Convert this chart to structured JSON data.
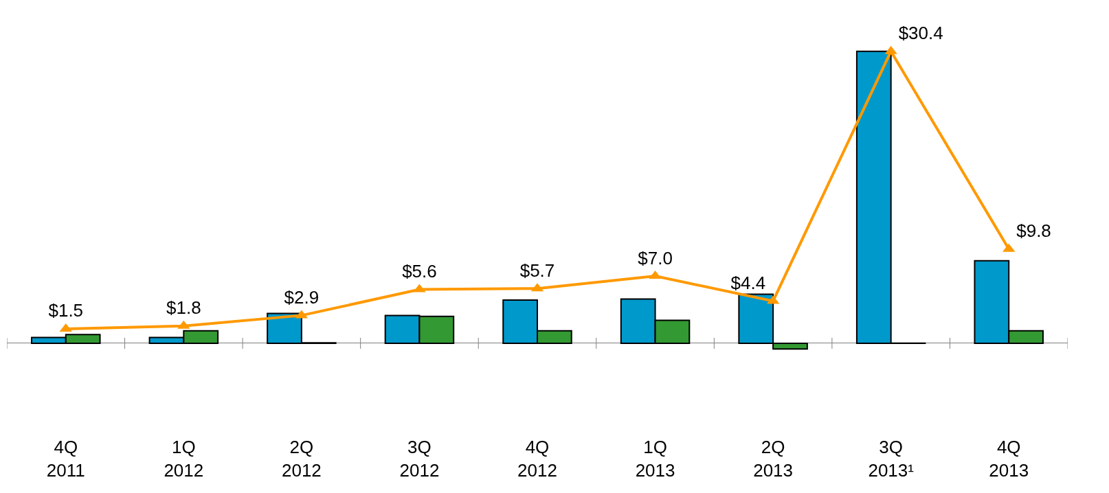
{
  "chart_data": {
    "type": "bar",
    "categories": [
      "4Q\n2011",
      "1Q\n2012",
      "2Q\n2012",
      "3Q\n2012",
      "4Q\n2012",
      "1Q\n2013",
      "2Q\n2013",
      "3Q\n2013¹",
      "4Q\n2013"
    ],
    "series": [
      {
        "color": "#0099cc",
        "values": [
          0.6,
          0.6,
          3.1,
          2.9,
          4.5,
          4.6,
          5.1,
          30.4,
          8.6
        ]
      },
      {
        "color": "#339933",
        "values": [
          0.9,
          1.3,
          0.05,
          2.8,
          1.3,
          2.4,
          -0.6,
          0.02,
          1.3
        ]
      },
      {
        "type": "line",
        "color": "#ff9900",
        "marker": "triangle",
        "values": [
          1.5,
          1.8,
          2.9,
          5.6,
          5.7,
          7.0,
          4.4,
          30.4,
          9.8
        ],
        "value_labels": [
          "$1.5",
          "$1.8",
          "$2.9",
          "$5.6",
          "$5.7",
          "$7.0",
          "$4.4",
          "$30.4",
          "$9.8"
        ]
      }
    ]
  }
}
